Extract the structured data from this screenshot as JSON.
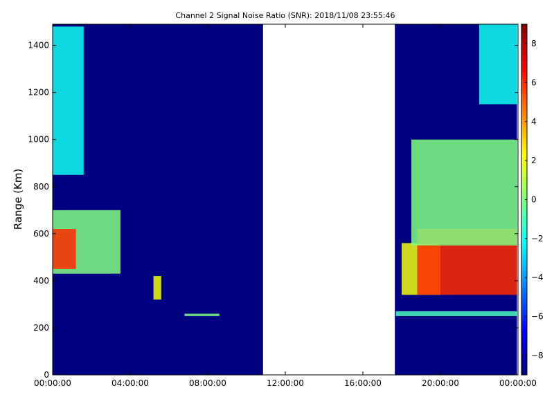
{
  "chart_data": {
    "type": "heatmap",
    "title": "Channel 2 Signal Noise Ratio (SNR): 2018/11/08 23:55:46",
    "xlabel": "",
    "ylabel": "Range (Km)",
    "xlim": [
      "00:00:00",
      "24:00:00"
    ],
    "ylim": [
      0,
      1490
    ],
    "x_ticks": [
      {
        "hour": 0,
        "label": "00:00:00"
      },
      {
        "hour": 4,
        "label": "04:00:00"
      },
      {
        "hour": 8,
        "label": "08:00:00"
      },
      {
        "hour": 12,
        "label": "12:00:00"
      },
      {
        "hour": 16,
        "label": "16:00:00"
      },
      {
        "hour": 20,
        "label": "20:00:00"
      },
      {
        "hour": 24,
        "label": "00:00:00"
      }
    ],
    "y_ticks": [
      0,
      200,
      400,
      600,
      800,
      1000,
      1200,
      1400
    ],
    "colorbar": {
      "colormap": "jet",
      "min": -9,
      "max": 9,
      "ticks": [
        -8,
        -6,
        -4,
        -2,
        0,
        2,
        4,
        6,
        8
      ]
    },
    "background_snr": -9,
    "data_segments_hours": [
      [
        0.0,
        10.85
      ],
      [
        17.65,
        23.95
      ]
    ],
    "gap_hours": [
      [
        10.85,
        17.45
      ],
      [
        17.55,
        17.65
      ]
    ],
    "features": [
      {
        "t0": 0.0,
        "t1": 1.6,
        "r0": 850,
        "r1": 1480,
        "snr": -2
      },
      {
        "t0": 0.0,
        "t1": 3.5,
        "r0": 430,
        "r1": 700,
        "snr": 0
      },
      {
        "t0": 0.0,
        "t1": 1.2,
        "r0": 450,
        "r1": 620,
        "snr": 6
      },
      {
        "t0": 5.2,
        "t1": 5.6,
        "r0": 320,
        "r1": 420,
        "snr": 2
      },
      {
        "t0": 6.8,
        "t1": 8.6,
        "r0": 250,
        "r1": 260,
        "snr": 0
      },
      {
        "t0": 18.0,
        "t1": 20.0,
        "r0": 340,
        "r1": 560,
        "snr": 2
      },
      {
        "t0": 18.8,
        "t1": 23.95,
        "r0": 340,
        "r1": 620,
        "snr": 6
      },
      {
        "t0": 18.5,
        "t1": 23.95,
        "r0": 550,
        "r1": 1000,
        "snr": 0
      },
      {
        "t0": 22.0,
        "t1": 23.95,
        "r0": 1150,
        "r1": 1490,
        "snr": -2
      },
      {
        "t0": 17.7,
        "t1": 23.95,
        "r0": 250,
        "r1": 270,
        "snr": -1
      }
    ]
  }
}
